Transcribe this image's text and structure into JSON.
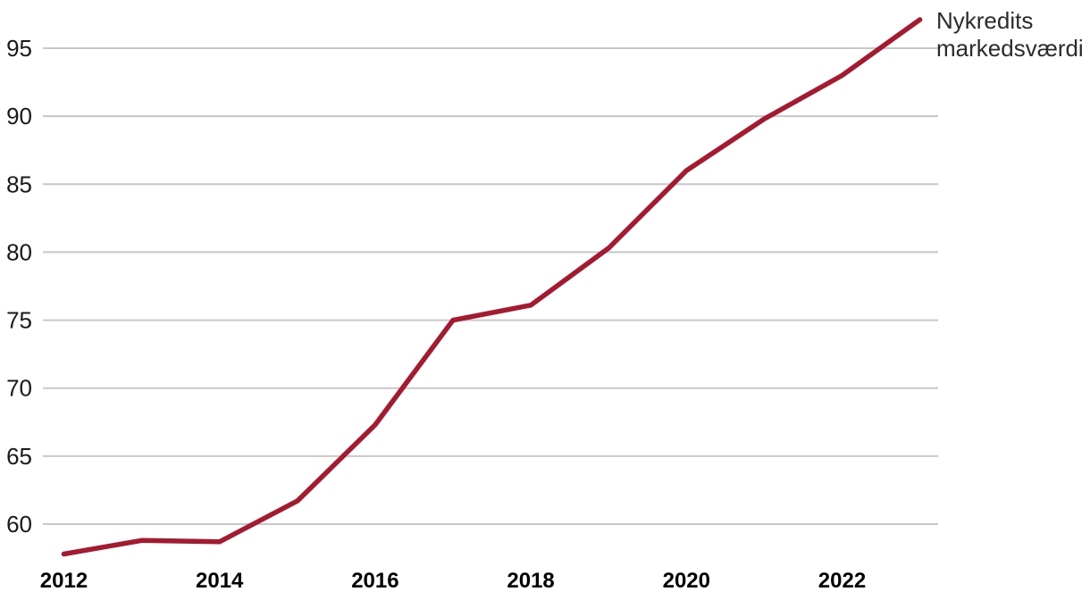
{
  "chart_data": {
    "type": "line",
    "title": "",
    "xlabel": "",
    "ylabel": "",
    "x": [
      2012,
      2013,
      2014,
      2015,
      2016,
      2017,
      2018,
      2019,
      2020,
      2021,
      2022,
      2023
    ],
    "series": [
      {
        "name": "Nykredits markedsværdi",
        "color": "#A6192E",
        "values": [
          57.8,
          58.8,
          58.7,
          61.7,
          67.3,
          75.0,
          76.1,
          80.3,
          86.0,
          89.8,
          93.0,
          97.1
        ]
      }
    ],
    "x_ticks": [
      2012,
      2014,
      2016,
      2018,
      2020,
      2022
    ],
    "x_tick_labels": [
      "2012",
      "2014",
      "2016",
      "2018",
      "2020",
      "2022"
    ],
    "y_ticks": [
      60,
      65,
      70,
      75,
      80,
      85,
      90,
      95
    ],
    "ylim": [
      60,
      95
    ],
    "xlim": [
      2012,
      2023
    ],
    "grid": "horizontal-only",
    "legend_position": "annotation-at-line-end-top-right",
    "annotation": "Nykredits markedsværdi"
  },
  "annotation": {
    "line1": "Nykredits",
    "line2": "markedsværdi"
  },
  "colors": {
    "line": "#A6192E",
    "grid": "#C8C8C8",
    "y_tick_text": "#1a1a1a",
    "x_tick_text": "#000000",
    "annotation_text": "#2b2b2b",
    "background": "#FFFFFF"
  }
}
